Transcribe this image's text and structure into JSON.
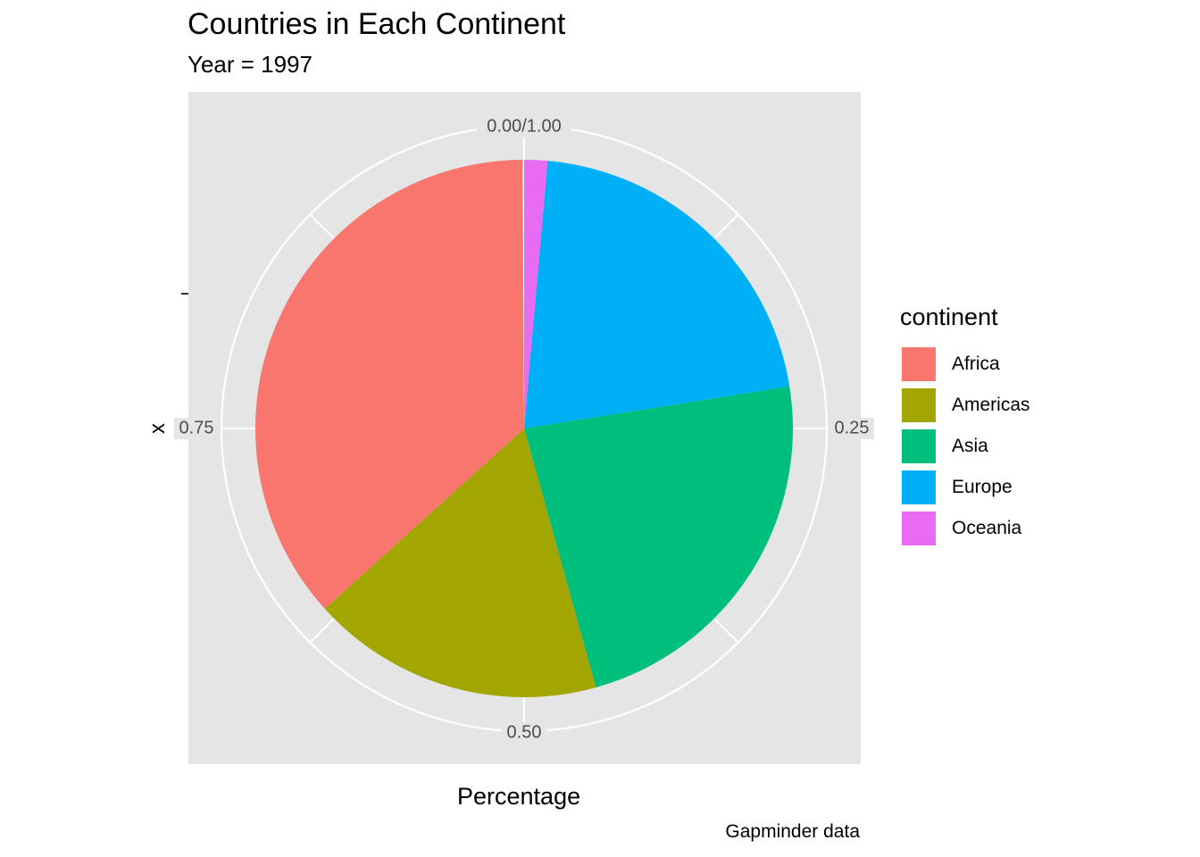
{
  "chart_data": {
    "type": "pie",
    "title": "Countries in Each Continent",
    "subtitle": "Year = 1997",
    "xlabel": "Percentage",
    "ylabel": "x",
    "caption": "Gapminder data",
    "legend_title": "continent",
    "legend_position": "right",
    "tick_labels": [
      "0.00/1.00",
      "0.25",
      "0.50",
      "0.75"
    ],
    "ticks": [
      0,
      0.25,
      0.5,
      0.75
    ],
    "slices": [
      {
        "label": "Oceania",
        "value": 0.014,
        "color": "#E76BF3"
      },
      {
        "label": "Europe",
        "value": 0.211,
        "color": "#00B0F6"
      },
      {
        "label": "Asia",
        "value": 0.232,
        "color": "#00BF7D"
      },
      {
        "label": "Americas",
        "value": 0.176,
        "color": "#A3A500"
      },
      {
        "label": "Africa",
        "value": 0.366,
        "color": "#F8766D"
      }
    ],
    "legend": [
      {
        "label": "Africa",
        "color": "#F8766D"
      },
      {
        "label": "Americas",
        "color": "#A3A500"
      },
      {
        "label": "Asia",
        "color": "#00BF7D"
      },
      {
        "label": "Europe",
        "color": "#00B0F6"
      },
      {
        "label": "Oceania",
        "color": "#E76BF3"
      }
    ],
    "panel_color": "#E5E5E5"
  }
}
